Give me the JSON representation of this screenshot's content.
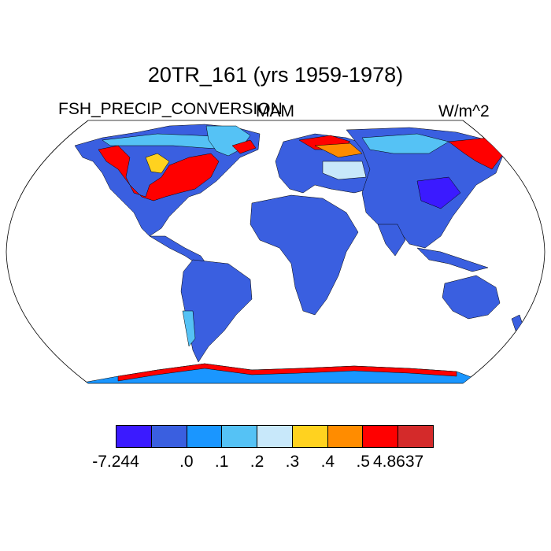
{
  "title": "20TR_161 (yrs 1959-1978)",
  "left_label": "FSH_PRECIP_CONVERSION",
  "center_label": "MAM",
  "right_label": "W/m^2",
  "colorbar": {
    "colors": [
      "#3b1aff",
      "#3a5fe0",
      "#1a96ff",
      "#55c2f5",
      "#c8e8fa",
      "#ffd21f",
      "#ff8c00",
      "#ff0000",
      "#d42a2a"
    ],
    "tick_labels": [
      "-7.244",
      ".0",
      ".1",
      ".2",
      ".3",
      ".4",
      ".5",
      "4.8637"
    ]
  },
  "land_colors": {
    "ocean": "#ffffff",
    "base": "#3a5fe0",
    "deep": "#3b1aff",
    "light": "#55c2f5",
    "pale": "#c8e8fa",
    "yellow": "#ffd21f",
    "orange": "#ff8c00",
    "red": "#ff0000",
    "darkred": "#d42a2a",
    "antarctic": "#1a96ff",
    "coast": "#000000"
  }
}
